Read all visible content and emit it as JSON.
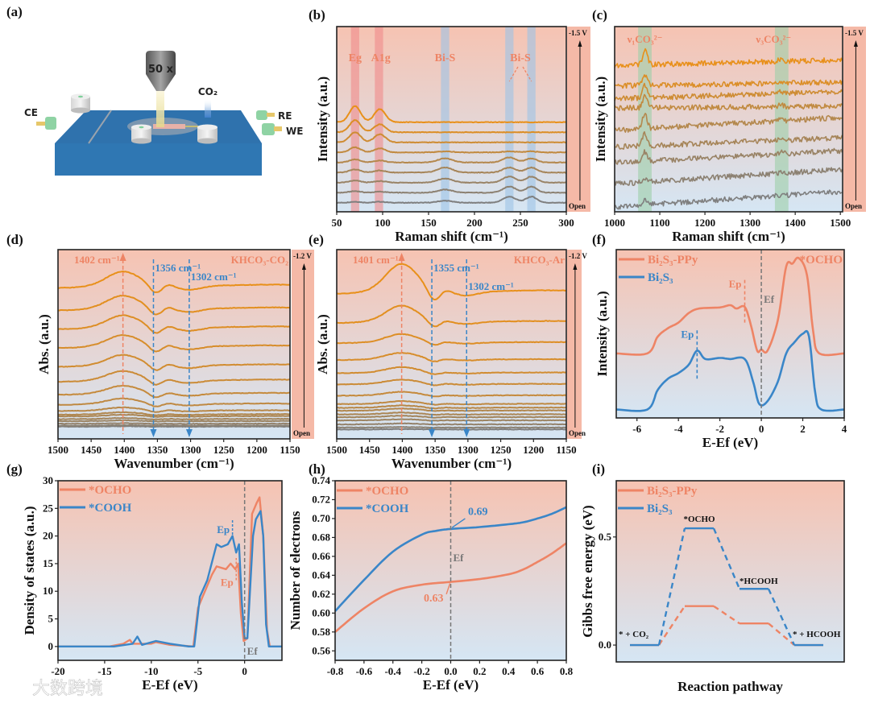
{
  "panel_labels": [
    "(a)",
    "(b)",
    "(c)",
    "(d)",
    "(e)",
    "(f)",
    "(g)",
    "(h)",
    "(i)"
  ],
  "schematic": {
    "objective": "50 x",
    "gas": "CO₂",
    "electrodes": [
      "CE",
      "RE",
      "WE"
    ]
  },
  "watermark": "大数跨境",
  "colors": {
    "orange": "#ee8465",
    "blue": "#3a86c8",
    "spectrum_top": "#e8901a",
    "spectrum_bottom": "#7f7f7f",
    "bg_top": "#f6c3b2",
    "bg_bottom": "#d5e6f4",
    "sidebar": "#f5b9a7"
  },
  "chart_data": [
    {
      "id": "b",
      "type": "line",
      "xlabel": "Raman shift (cm⁻¹)",
      "ylabel": "Intensity (a.u.)",
      "xlim": [
        50,
        300
      ],
      "ylim": [
        -0.9,
        17.5
      ],
      "x_ticks": [
        "50",
        "100",
        "150",
        "200",
        "250",
        "300"
      ],
      "sidebar": {
        "top": "-1.5 V",
        "bottom": "Open"
      },
      "bands": [
        {
          "x": 70,
          "label": "Eg",
          "color": "#f08a8a"
        },
        {
          "x": 96,
          "label": "A1g",
          "color": "#f08a8a"
        },
        {
          "x": 168,
          "label": "Bi-S",
          "color": "#9cc3e6"
        },
        {
          "x": 238,
          "label": "Bi-S",
          "color": "#9cc3e6"
        },
        {
          "x": 262,
          "label": "",
          "color": "#9cc3e6"
        }
      ],
      "peak_positions": [
        70,
        97,
        168,
        238,
        262
      ],
      "peak_widths": [
        6,
        6,
        8,
        7,
        6
      ],
      "series": [
        {
          "offset": 0,
          "amps": [
            0.1,
            0.1,
            0.2,
            0.6,
            0.6
          ]
        },
        {
          "offset": 1,
          "amps": [
            0.15,
            0.1,
            0.3,
            0.6,
            0.6
          ]
        },
        {
          "offset": 2,
          "amps": [
            0.2,
            0.15,
            0.4,
            0.6,
            0.6
          ]
        },
        {
          "offset": 3,
          "amps": [
            0.3,
            0.2,
            0.5,
            0.5,
            0.5
          ]
        },
        {
          "offset": 4,
          "amps": [
            0.3,
            0.2,
            0.4,
            0.5,
            0.4
          ]
        },
        {
          "offset": 5,
          "amps": [
            0.5,
            0.4,
            0.1,
            0.1,
            0.1
          ]
        },
        {
          "offset": 6,
          "amps": [
            1.0,
            0.8,
            0,
            0,
            0
          ]
        },
        {
          "offset": 7,
          "amps": [
            1.2,
            0.8,
            0,
            0,
            0
          ]
        },
        {
          "offset": 8,
          "amps": [
            1.6,
            1.3,
            0,
            0,
            0
          ]
        }
      ]
    },
    {
      "id": "c",
      "type": "line",
      "xlabel": "Raman shift (cm⁻¹)",
      "ylabel": "Intensity (a.u.)",
      "xlim": [
        1000,
        1505
      ],
      "ylim": [
        0,
        10
      ],
      "x_ticks": [
        "1000",
        "1100",
        "1200",
        "1300",
        "1400",
        "1500"
      ],
      "sidebar": {
        "top": "-1.5 V",
        "bottom": "Open"
      },
      "bands": [
        {
          "x": 1067,
          "label": "ν₁CO₃²⁻"
        },
        {
          "x": 1370,
          "label": "ν₃CO₃²⁻"
        }
      ],
      "series": [
        {
          "start": 0.26,
          "end": 1.1,
          "peak": 0.25
        },
        {
          "start": 1.5,
          "end": 2.3,
          "peak": 0.15
        },
        {
          "start": 2.65,
          "end": 3.3,
          "peak": 0.5
        },
        {
          "start": 3.5,
          "end": 4.0,
          "peak": 0.7
        },
        {
          "start": 4.4,
          "end": 5.1,
          "peak": 0.8
        },
        {
          "start": 5.6,
          "end": 5.7,
          "peak": 0.6
        },
        {
          "start": 6.1,
          "end": 6.5,
          "peak": 0.7
        },
        {
          "start": 6.8,
          "end": 7.0,
          "peak": 0.6
        },
        {
          "start": 7.9,
          "end": 8.2,
          "peak": 0.8
        }
      ]
    },
    {
      "id": "d",
      "type": "line",
      "xlabel": "Wavenumber (cm⁻¹)",
      "ylabel": "Abs. (a.u.)",
      "xlim": [
        1500,
        1150
      ],
      "ylim": [
        0,
        10
      ],
      "x_ticks": [
        "1500",
        "1450",
        "1400",
        "1350",
        "1300",
        "1250",
        "1200",
        "1150"
      ],
      "sidebar": {
        "top": "-1.2 V",
        "bottom": "Open"
      },
      "condition": "KHCO₃-CO₂",
      "markers": [
        {
          "x": 1402,
          "label": "1402 cm⁻¹",
          "color": "#ee8465",
          "dir": "up"
        },
        {
          "x": 1356,
          "label": "1356 cm⁻¹",
          "color": "#3a86c8",
          "dir": "down"
        },
        {
          "x": 1302,
          "label": "1302 cm⁻¹",
          "color": "#3a86c8",
          "dir": "down"
        }
      ],
      "peak": {
        "x": 1402,
        "amp": 0.75
      },
      "dip": {
        "x": 1356,
        "amp": 0.45
      },
      "baselines": [
        0.65,
        0.7,
        0.8,
        0.94,
        1.05,
        1.2,
        1.3,
        1.5,
        1.85,
        2.4,
        3.1,
        3.9,
        4.9,
        5.9,
        6.9,
        8.1
      ],
      "scales": [
        0.02,
        0.03,
        0.04,
        0.05,
        0.07,
        0.1,
        0.14,
        0.22,
        0.38,
        0.55,
        0.65,
        0.72,
        0.78,
        0.84,
        0.9,
        1.0
      ]
    },
    {
      "id": "e",
      "type": "line",
      "xlabel": "Wavenumber (cm⁻¹)",
      "ylabel": "Abs. (a.u.)",
      "xlim": [
        1500,
        1150
      ],
      "ylim": [
        0,
        10
      ],
      "x_ticks": [
        "1500",
        "1450",
        "1400",
        "1350",
        "1300",
        "1250",
        "1200",
        "1150"
      ],
      "sidebar": {
        "top": "-1.2 V",
        "bottom": "Open"
      },
      "condition": "KHCO₃-Ar",
      "markers": [
        {
          "x": 1401,
          "label": "1401 cm⁻¹",
          "color": "#ee8465",
          "dir": "up"
        },
        {
          "x": 1355,
          "label": "1355 cm⁻¹",
          "color": "#3a86c8",
          "dir": "down"
        },
        {
          "x": 1302,
          "label": "1302 cm⁻¹",
          "color": "#3a86c8",
          "dir": "down"
        }
      ],
      "peak": {
        "x": 1401,
        "amp": 1.45
      },
      "dip": {
        "x": 1355,
        "amp": 0.6
      },
      "baselines": [
        0.5,
        0.6,
        0.77,
        0.98,
        1.15,
        1.3,
        1.5,
        1.65,
        1.85,
        2.3,
        2.9,
        3.5,
        4.2,
        5.1,
        6.2,
        7.8
      ],
      "scales": [
        0.01,
        0.02,
        0.03,
        0.04,
        0.05,
        0.06,
        0.07,
        0.08,
        0.1,
        0.13,
        0.16,
        0.2,
        0.24,
        0.3,
        0.58,
        1.0
      ]
    },
    {
      "id": "f",
      "type": "line",
      "xlabel": "E-Ef (eV)",
      "ylabel": "Intensity (a.u.)",
      "xlim": [
        -7,
        4
      ],
      "ylim": [
        -0.15,
        2.85
      ],
      "x_ticks": [
        "-6",
        "-4",
        "-2",
        "0",
        "2",
        "4"
      ],
      "annotations": {
        "ep": "Ep",
        "ef": "Ef",
        "species": "*OCHO"
      },
      "ep_lines": [
        {
          "series": 0,
          "x": -0.8,
          "y": [
            1.55,
            2.35
          ]
        },
        {
          "series": 1,
          "x": -3.1,
          "y": [
            0.55,
            1.45
          ]
        }
      ],
      "series": [
        {
          "name": "Bi₂S₃-PPy",
          "color": "#ee8465",
          "points": [
            [
              -7,
              1
            ],
            [
              -5.5,
              1
            ],
            [
              -5,
              1.3
            ],
            [
              -4.5,
              1.45
            ],
            [
              -4,
              1.55
            ],
            [
              -3.5,
              1.72
            ],
            [
              -3,
              1.8
            ],
            [
              -2,
              1.82
            ],
            [
              -1.5,
              1.86
            ],
            [
              -1.2,
              1.8
            ],
            [
              -0.8,
              1.83
            ],
            [
              -0.5,
              1.5
            ],
            [
              -0.2,
              1.05
            ],
            [
              0,
              1.07
            ],
            [
              0.3,
              1.05
            ],
            [
              0.8,
              1.6
            ],
            [
              1.2,
              2.55
            ],
            [
              1.5,
              2.6
            ],
            [
              1.8,
              2.7
            ],
            [
              2.2,
              2.4
            ],
            [
              2.5,
              1.4
            ],
            [
              2.8,
              1
            ],
            [
              4,
              1
            ]
          ]
        },
        {
          "name": "Bi₂S₃",
          "color": "#3a86c8",
          "points": [
            [
              -7,
              0
            ],
            [
              -5.5,
              0
            ],
            [
              -5,
              0.35
            ],
            [
              -4.5,
              0.55
            ],
            [
              -4,
              0.65
            ],
            [
              -3.5,
              0.8
            ],
            [
              -3.1,
              1.05
            ],
            [
              -2.7,
              0.9
            ],
            [
              -2,
              0.92
            ],
            [
              -1.5,
              0.9
            ],
            [
              -0.8,
              0.9
            ],
            [
              -0.4,
              0.5
            ],
            [
              -0.1,
              0.1
            ],
            [
              0.3,
              0.15
            ],
            [
              0.8,
              0.5
            ],
            [
              1.2,
              1.0
            ],
            [
              1.6,
              1.2
            ],
            [
              2,
              1.35
            ],
            [
              2.3,
              1.3
            ],
            [
              2.6,
              0.3
            ],
            [
              2.9,
              0
            ],
            [
              4,
              0
            ]
          ]
        }
      ]
    },
    {
      "id": "g",
      "type": "line",
      "xlabel": "E-Ef (eV)",
      "ylabel": "Density of states (a.u.)",
      "xlim": [
        -20,
        4
      ],
      "ylim": [
        -2.5,
        30
      ],
      "x_ticks": [
        "-20",
        "-15",
        "-10",
        "-5",
        "0"
      ],
      "y_ticks": [
        "0",
        "5",
        "10",
        "15",
        "20",
        "25",
        "30"
      ],
      "annotations": {
        "ep": "Ep",
        "ef": "Ef"
      },
      "series": [
        {
          "name": "*OCHO",
          "color": "#ee8465",
          "points": [
            [
              -20,
              0
            ],
            [
              -14.5,
              0
            ],
            [
              -13,
              0.5
            ],
            [
              -12.3,
              1.2
            ],
            [
              -12,
              0.5
            ],
            [
              -10,
              0.5
            ],
            [
              -9.5,
              0.8
            ],
            [
              -8,
              0.3
            ],
            [
              -7,
              0.2
            ],
            [
              -5.5,
              0
            ],
            [
              -5,
              7
            ],
            [
              -4.5,
              9
            ],
            [
              -3.5,
              13
            ],
            [
              -3,
              14.5
            ],
            [
              -2,
              14
            ],
            [
              -1.5,
              15
            ],
            [
              -1,
              14
            ],
            [
              -0.7,
              15
            ],
            [
              -0.4,
              6
            ],
            [
              -0.1,
              1
            ],
            [
              0.3,
              1.5
            ],
            [
              0.8,
              24
            ],
            [
              1.3,
              26
            ],
            [
              1.6,
              27
            ],
            [
              2,
              20
            ],
            [
              2.4,
              3
            ],
            [
              2.7,
              0
            ],
            [
              4,
              0
            ]
          ]
        },
        {
          "name": "*COOH",
          "color": "#3a86c8",
          "points": [
            [
              -20,
              0
            ],
            [
              -14,
              0
            ],
            [
              -12,
              0.5
            ],
            [
              -11.5,
              1.8
            ],
            [
              -11,
              0.3
            ],
            [
              -9.5,
              1
            ],
            [
              -8,
              0.5
            ],
            [
              -6,
              0
            ],
            [
              -5.4,
              0
            ],
            [
              -4.8,
              9
            ],
            [
              -4,
              12
            ],
            [
              -3,
              18.5
            ],
            [
              -2.5,
              18
            ],
            [
              -1.8,
              18.5
            ],
            [
              -1.3,
              20
            ],
            [
              -0.9,
              17
            ],
            [
              -0.6,
              18.5
            ],
            [
              -0.3,
              8
            ],
            [
              0,
              1.5
            ],
            [
              0.3,
              1.5
            ],
            [
              0.9,
              20
            ],
            [
              1.2,
              23
            ],
            [
              1.7,
              24.5
            ],
            [
              2,
              20
            ],
            [
              2.3,
              4
            ],
            [
              2.6,
              0
            ],
            [
              4,
              0
            ]
          ]
        }
      ]
    },
    {
      "id": "h",
      "type": "line",
      "xlabel": "E-Ef (eV)",
      "ylabel": "Number of electrons",
      "xlim": [
        -0.8,
        0.8
      ],
      "ylim": [
        0.55,
        0.74
      ],
      "x_ticks": [
        "-0.8",
        "-0.6",
        "-0.4",
        "-0.2",
        "0.0",
        "0.2",
        "0.4",
        "0.6",
        "0.8"
      ],
      "y_ticks": [
        "0.56",
        "0.58",
        "0.60",
        "0.62",
        "0.64",
        "0.66",
        "0.68",
        "0.70",
        "0.72",
        "0.74"
      ],
      "annotations": {
        "ef": "Ef",
        "cooh_value": "0.69",
        "ocho_value": "0.63"
      },
      "series": [
        {
          "name": "*OCHO",
          "color": "#ee8465",
          "points": [
            [
              -0.8,
              0.58
            ],
            [
              -0.6,
              0.605
            ],
            [
              -0.4,
              0.623
            ],
            [
              -0.2,
              0.63
            ],
            [
              0,
              0.633
            ],
            [
              0.2,
              0.636
            ],
            [
              0.4,
              0.641
            ],
            [
              0.5,
              0.646
            ],
            [
              0.6,
              0.654
            ],
            [
              0.7,
              0.663
            ],
            [
              0.8,
              0.674
            ]
          ]
        },
        {
          "name": "*COOH",
          "color": "#3a86c8",
          "points": [
            [
              -0.8,
              0.602
            ],
            [
              -0.6,
              0.635
            ],
            [
              -0.4,
              0.665
            ],
            [
              -0.2,
              0.683
            ],
            [
              -0.1,
              0.687
            ],
            [
              0,
              0.689
            ],
            [
              0.2,
              0.691
            ],
            [
              0.4,
              0.694
            ],
            [
              0.5,
              0.696
            ],
            [
              0.6,
              0.7
            ],
            [
              0.7,
              0.705
            ],
            [
              0.8,
              0.712
            ]
          ]
        }
      ]
    },
    {
      "id": "i",
      "type": "line",
      "xlabel": "Reaction pathway",
      "ylabel": "Gibbs free energy (eV)",
      "ylim": [
        -0.078,
        0.76
      ],
      "y_ticks": [
        "0.0",
        "0.5"
      ],
      "states": [
        "* + CO₂",
        "*OCHO",
        "*HCOOH",
        "* + HCOOH"
      ],
      "series": [
        {
          "name": "Bi₂S₃-PPy",
          "color": "#ee8465",
          "values": [
            0,
            0.18,
            0.1,
            0
          ]
        },
        {
          "name": "Bi₂S₃",
          "color": "#3a86c8",
          "values": [
            0,
            0.54,
            0.26,
            0
          ]
        }
      ]
    }
  ]
}
